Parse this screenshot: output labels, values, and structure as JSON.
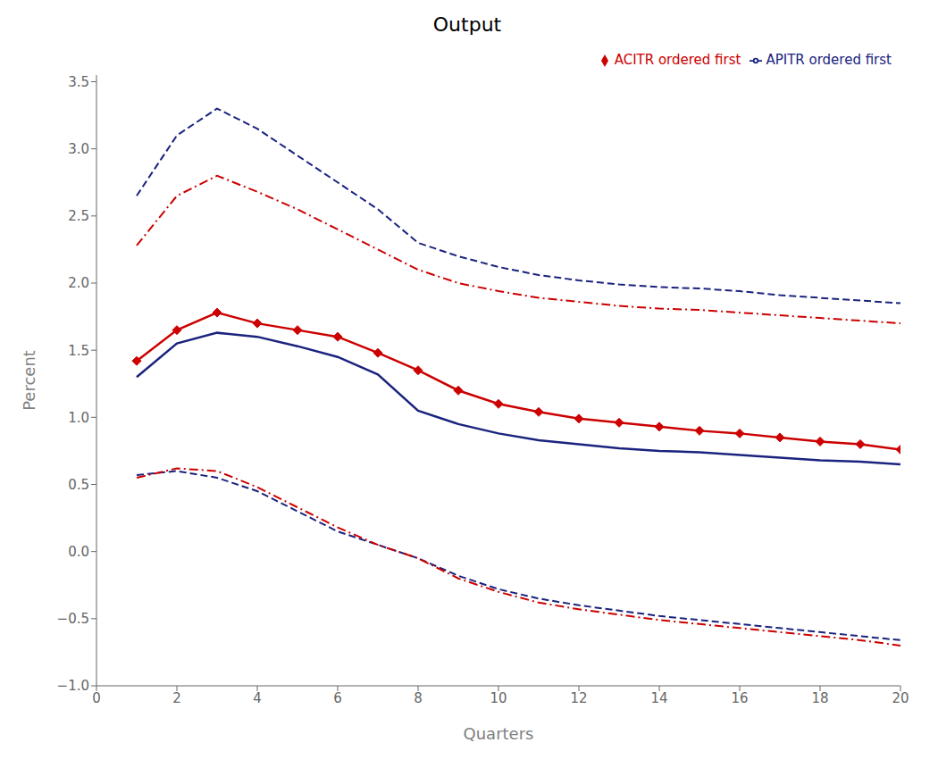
{
  "chart_data": {
    "type": "line",
    "title": "Output",
    "xlabel": "Quarters",
    "ylabel": "Percent",
    "x": [
      1,
      2,
      3,
      4,
      5,
      6,
      7,
      8,
      9,
      10,
      11,
      12,
      13,
      14,
      15,
      16,
      17,
      18,
      19,
      20
    ],
    "xlim": [
      0,
      20
    ],
    "xticks": [
      0,
      2,
      4,
      6,
      8,
      10,
      12,
      14,
      16,
      18,
      20
    ],
    "ylim": [
      -1.0,
      3.55
    ],
    "yticks": [
      {
        "value": -1.0,
        "label": "−1.0"
      },
      {
        "value": -0.5,
        "label": "−0.5"
      },
      {
        "value": 0.0,
        "label": "0.0"
      },
      0.5,
      {
        "value": 1.0,
        "label": "1.0"
      },
      1.5,
      {
        "value": 2.0,
        "label": "2.0"
      },
      2.5,
      {
        "value": 3.0,
        "label": "3.0"
      },
      3.5
    ],
    "grid": false,
    "legend": "upper right",
    "series": [
      {
        "name": "APITR ordered first",
        "color": "#1a237e",
        "line_style": "solid",
        "marker": "none",
        "values": [
          1.3,
          1.55,
          1.63,
          1.6,
          1.53,
          1.45,
          1.32,
          1.05,
          0.95,
          0.88,
          0.83,
          0.8,
          0.77,
          0.75,
          0.74,
          0.72,
          0.7,
          0.68,
          0.67,
          0.65
        ],
        "upper": [
          2.65,
          3.1,
          3.3,
          3.15,
          2.95,
          2.75,
          2.55,
          2.3,
          2.2,
          2.12,
          2.06,
          2.02,
          1.99,
          1.97,
          1.96,
          1.94,
          1.91,
          1.89,
          1.87,
          1.85
        ],
        "lower": [
          0.57,
          0.6,
          0.55,
          0.45,
          0.3,
          0.15,
          0.05,
          -0.05,
          -0.18,
          -0.28,
          -0.35,
          -0.4,
          -0.44,
          -0.48,
          -0.51,
          -0.54,
          -0.57,
          -0.6,
          -0.63,
          -0.66
        ]
      },
      {
        "name": "ACITR ordered first",
        "color": "#cc0000",
        "line_style": "solid",
        "marker": "diamond",
        "values": [
          1.42,
          1.65,
          1.78,
          1.7,
          1.65,
          1.6,
          1.48,
          1.35,
          1.2,
          1.1,
          1.04,
          0.99,
          0.96,
          0.93,
          0.9,
          0.88,
          0.85,
          0.82,
          0.8,
          0.76
        ],
        "upper": [
          2.28,
          2.65,
          2.8,
          2.68,
          2.55,
          2.4,
          2.25,
          2.1,
          2.0,
          1.94,
          1.89,
          1.86,
          1.83,
          1.81,
          1.8,
          1.78,
          1.76,
          1.74,
          1.72,
          1.7
        ],
        "lower": [
          0.55,
          0.62,
          0.6,
          0.48,
          0.33,
          0.18,
          0.05,
          -0.05,
          -0.2,
          -0.3,
          -0.38,
          -0.43,
          -0.47,
          -0.51,
          -0.54,
          -0.57,
          -0.6,
          -0.63,
          -0.66,
          -0.7
        ]
      }
    ]
  }
}
